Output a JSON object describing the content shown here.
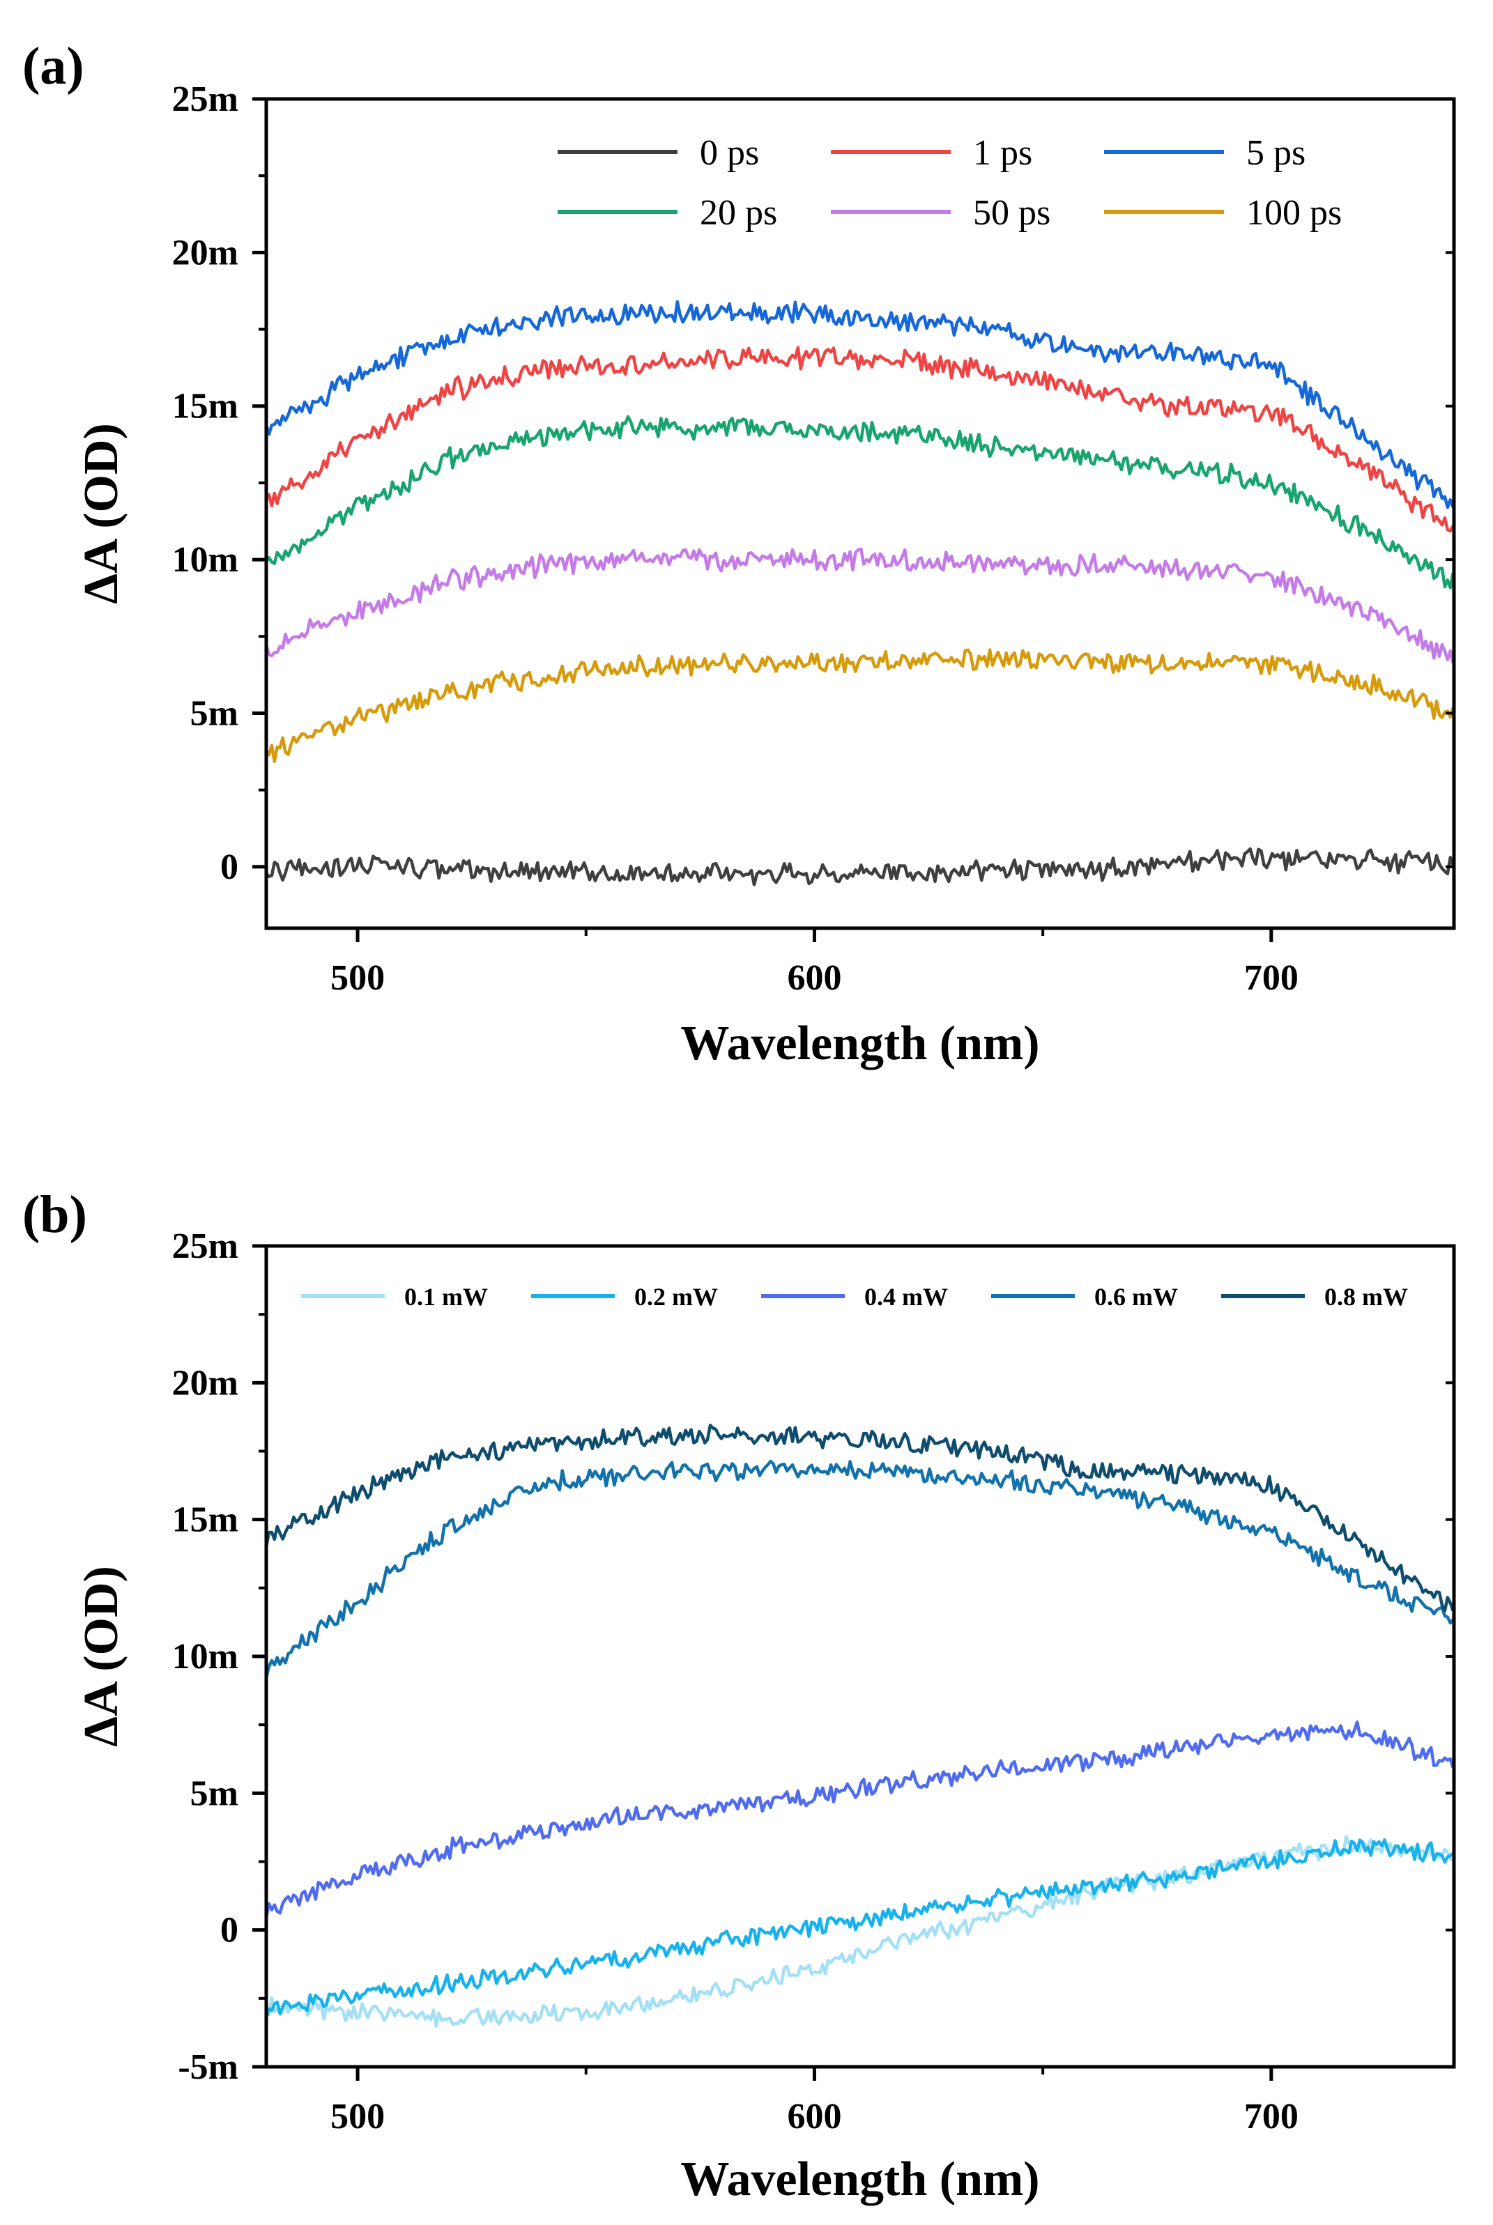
{
  "chart_data": [
    {
      "panel_label": "(a)",
      "type": "line",
      "xlabel": "Wavelength (nm)",
      "ylabel": "ΔA (OD)",
      "xlim": [
        480,
        740
      ],
      "ylim": [
        -0.002,
        0.025
      ],
      "x_ticks": [
        500,
        600,
        700
      ],
      "x_tick_labels": [
        "500",
        "600",
        "700"
      ],
      "y_ticks": [
        0,
        0.005,
        0.01,
        0.015,
        0.02,
        0.025
      ],
      "y_tick_labels": [
        "0",
        "5m",
        "10m",
        "15m",
        "20m",
        "25m"
      ],
      "grid": false,
      "legend_position": "top-right",
      "x": [
        480,
        500,
        520,
        540,
        560,
        580,
        600,
        620,
        640,
        660,
        680,
        700,
        720,
        740
      ],
      "series": [
        {
          "name": "0 ps",
          "color": "#3f3f3f",
          "values": [
            -0.0002,
            0.0001,
            -0.0001,
            -0.0002,
            -0.0002,
            -0.0002,
            -0.0002,
            -0.0002,
            -0.0001,
            -0.0001,
            0.0001,
            0.0003,
            0.0002,
            0.0001
          ]
        },
        {
          "name": "1 ps",
          "color": "#ef4444",
          "values": [
            0.0118,
            0.0138,
            0.0155,
            0.0162,
            0.0164,
            0.0165,
            0.0166,
            0.0165,
            0.0161,
            0.0155,
            0.015,
            0.0148,
            0.013,
            0.011
          ]
        },
        {
          "name": "5 ps",
          "color": "#1668d8",
          "values": [
            0.0142,
            0.016,
            0.0173,
            0.0178,
            0.018,
            0.0181,
            0.018,
            0.0178,
            0.0175,
            0.0168,
            0.0167,
            0.0163,
            0.014,
            0.0118
          ]
        },
        {
          "name": "20 ps",
          "color": "#17a46e",
          "values": [
            0.0098,
            0.0117,
            0.0133,
            0.014,
            0.0143,
            0.0143,
            0.0142,
            0.0141,
            0.0137,
            0.0133,
            0.013,
            0.0125,
            0.011,
            0.0093
          ]
        },
        {
          "name": "50 ps",
          "color": "#c57be7",
          "values": [
            0.0071,
            0.0083,
            0.0093,
            0.0098,
            0.01,
            0.01,
            0.01,
            0.01,
            0.0099,
            0.0098,
            0.0097,
            0.0094,
            0.0083,
            0.0068
          ]
        },
        {
          "name": "100 ps",
          "color": "#d69a0a",
          "values": [
            0.0037,
            0.0048,
            0.0057,
            0.0062,
            0.0065,
            0.0066,
            0.0066,
            0.0067,
            0.0068,
            0.0067,
            0.0066,
            0.0066,
            0.006,
            0.005
          ]
        }
      ]
    },
    {
      "panel_label": "(b)",
      "type": "line",
      "xlabel": "Wavelength (nm)",
      "ylabel": "ΔA (OD)",
      "xlim": [
        480,
        740
      ],
      "ylim": [
        -0.005,
        0.025
      ],
      "x_ticks": [
        500,
        600,
        700
      ],
      "x_tick_labels": [
        "500",
        "600",
        "700"
      ],
      "y_ticks": [
        -0.005,
        0,
        0.005,
        0.01,
        0.015,
        0.02,
        0.025
      ],
      "y_tick_labels": [
        "-5m",
        "0",
        "5m",
        "10m",
        "15m",
        "20m",
        "25m"
      ],
      "grid": false,
      "legend_position": "top",
      "x": [
        480,
        500,
        520,
        540,
        560,
        580,
        600,
        620,
        640,
        660,
        680,
        700,
        720,
        740
      ],
      "series": [
        {
          "name": "0.1 mW",
          "color": "#a4e0f5",
          "values": [
            -0.0028,
            -0.003,
            -0.0032,
            -0.0031,
            -0.0028,
            -0.0022,
            -0.0014,
            -0.0004,
            0.0005,
            0.0014,
            0.002,
            0.0027,
            0.0031,
            0.0028
          ]
        },
        {
          "name": "0.2 mW",
          "color": "#17b2ec",
          "values": [
            -0.003,
            -0.0024,
            -0.0019,
            -0.0015,
            -0.001,
            -0.0004,
            0.0001,
            0.0006,
            0.0011,
            0.0016,
            0.002,
            0.0025,
            0.0031,
            0.0027
          ]
        },
        {
          "name": "0.4 mW",
          "color": "#4f6cf0",
          "values": [
            0.0007,
            0.002,
            0.003,
            0.0036,
            0.0042,
            0.0045,
            0.0049,
            0.0054,
            0.0058,
            0.0062,
            0.0066,
            0.0071,
            0.0073,
            0.006
          ]
        },
        {
          "name": "0.6 mW",
          "color": "#1272ab",
          "values": [
            0.0095,
            0.012,
            0.0147,
            0.0163,
            0.0167,
            0.0168,
            0.0168,
            0.0167,
            0.0165,
            0.016,
            0.0155,
            0.0145,
            0.0128,
            0.0113
          ]
        },
        {
          "name": "0.8 mW",
          "color": "#0e4d6e",
          "values": [
            0.0143,
            0.016,
            0.0173,
            0.0178,
            0.018,
            0.0181,
            0.018,
            0.0178,
            0.0175,
            0.0168,
            0.0167,
            0.0163,
            0.014,
            0.0118
          ]
        }
      ]
    }
  ]
}
